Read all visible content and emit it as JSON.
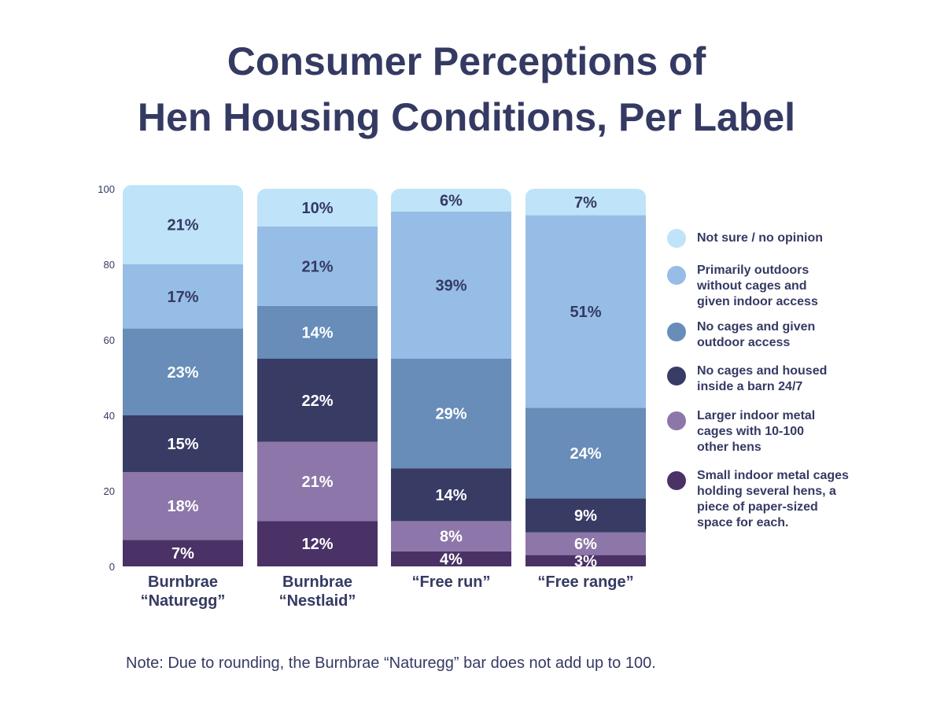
{
  "title": {
    "line1": "Consumer Perceptions of",
    "line2": "Hen Housing Conditions, Per Label"
  },
  "note": "Note: Due to rounding, the Burnbrae “Naturegg” bar does not add up to 100.",
  "chart_data": {
    "type": "bar",
    "stacked": true,
    "title": "Consumer Perceptions of Hen Housing Conditions, Per Label",
    "ylim": [
      0,
      100
    ],
    "yticks": [
      "0",
      "20",
      "40",
      "60",
      "80",
      "100"
    ],
    "categories": [
      [
        "Burnbrae",
        "“Naturegg”"
      ],
      [
        "Burnbrae",
        "“Nestlaid”"
      ],
      [
        "“Free run”"
      ],
      [
        "“Free range”"
      ]
    ],
    "legend_position": "right",
    "series": [
      {
        "name": [
          "Small indoor metal cages",
          "holding several hens, a",
          "piece of paper-sized",
          "space for each."
        ],
        "color": "#4a3166",
        "label_color": "#ffffff",
        "values": [
          7,
          12,
          4,
          3
        ],
        "labels": [
          "7%",
          "12%",
          "4%",
          "3%"
        ]
      },
      {
        "name": [
          "Larger indoor metal",
          "cages with 10-100",
          "other hens"
        ],
        "color": "#8d76a9",
        "label_color": "#ffffff",
        "values": [
          18,
          21,
          8,
          6
        ],
        "labels": [
          "18%",
          "21%",
          "8%",
          "6%"
        ]
      },
      {
        "name": [
          "No cages and housed",
          "inside a barn 24/7"
        ],
        "color": "#383c65",
        "label_color": "#ffffff",
        "values": [
          15,
          22,
          14,
          9
        ],
        "labels": [
          "15%",
          "22%",
          "14%",
          "9%"
        ]
      },
      {
        "name": [
          "No cages and given",
          "outdoor access"
        ],
        "color": "#678db8",
        "label_color": "#ffffff",
        "values": [
          23,
          14,
          29,
          24
        ],
        "labels": [
          "23%",
          "14%",
          "29%",
          "24%"
        ]
      },
      {
        "name": [
          "Primarily outdoors",
          "without cages and",
          "given indoor access"
        ],
        "color": "#96bde6",
        "label_color": "#353a63",
        "values": [
          17,
          21,
          39,
          51
        ],
        "labels": [
          "17%",
          "21%",
          "39%",
          "51%"
        ]
      },
      {
        "name": [
          "Not sure / no opinion"
        ],
        "color": "#bfe3f8",
        "label_color": "#353a63",
        "values": [
          21,
          10,
          6,
          7
        ],
        "labels": [
          "21%",
          "10%",
          "6%",
          "7%"
        ]
      }
    ]
  }
}
